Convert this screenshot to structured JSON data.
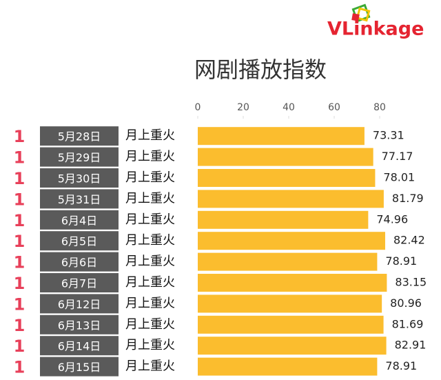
{
  "chart_data": {
    "type": "bar",
    "orientation": "horizontal",
    "logo": "VLinkage",
    "title": "网剧播放指数",
    "ranks": [
      1,
      1,
      1,
      1,
      1,
      1,
      1,
      1,
      1,
      1,
      1,
      1
    ],
    "categories": [
      "5月28日",
      "5月29日",
      "5月30日",
      "5月31日",
      "6月4日",
      "6月5日",
      "6月6日",
      "6月7日",
      "6月12日",
      "6月13日",
      "6月14日",
      "6月15日"
    ],
    "names": [
      "月上重火",
      "月上重火",
      "月上重火",
      "月上重火",
      "月上重火",
      "月上重火",
      "月上重火",
      "月上重火",
      "月上重火",
      "月上重火",
      "月上重火",
      "月上重火"
    ],
    "values": [
      73.31,
      77.17,
      78.01,
      81.79,
      74.96,
      82.42,
      78.91,
      83.15,
      80.96,
      81.69,
      82.91,
      78.91
    ],
    "color": "#fbbd2e",
    "xlim": [
      0,
      80
    ],
    "xticks": [
      0,
      20,
      40,
      60,
      80
    ]
  }
}
